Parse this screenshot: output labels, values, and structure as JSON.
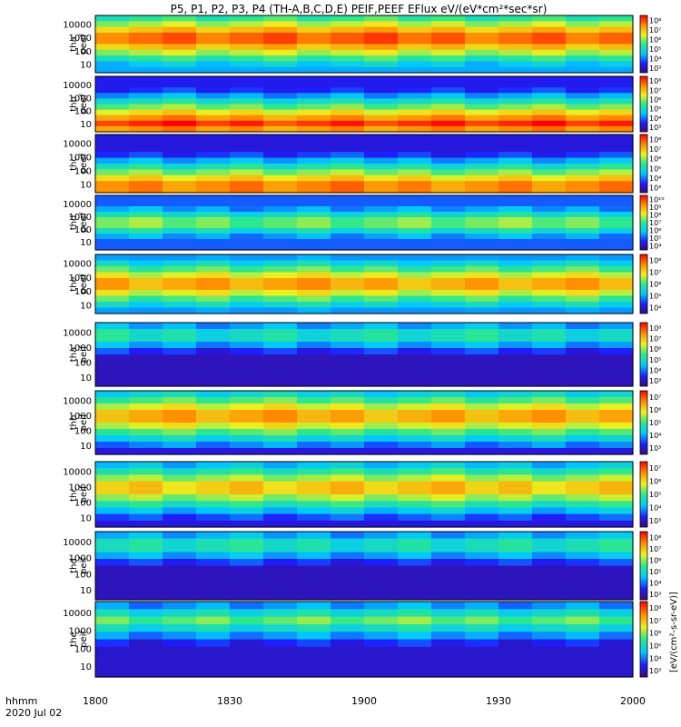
{
  "title": "P5, P1, P2, P3, P4 (TH-A,B,C,D,E) PEIF,PEEF EFlux eV/(eV*cm²*sec*sr)",
  "time_label": "hhmm",
  "date_label": "2020 Jul 02",
  "colorbar_unit": "[eV/(cm²-s-sr-eV)]",
  "chart_data": {
    "type": "heatmap",
    "x_range": [
      "1800",
      "2000"
    ],
    "x_ticks": [
      "1800",
      "1830",
      "1900",
      "1930",
      "2000"
    ],
    "y_scale": "log",
    "y_ticks": [
      "10",
      "100",
      "1000",
      "10000"
    ],
    "panels": [
      {
        "probe": "tha",
        "product": "peef",
        "cb_ticks": [
          "10³",
          "10⁴",
          "10⁵",
          "10⁶",
          "10⁷",
          "10⁸"
        ]
      },
      {
        "probe": "thb",
        "product": "peef",
        "cb_ticks": [
          "10³",
          "10⁴",
          "10⁵",
          "10⁶",
          "10⁷",
          "10⁸"
        ]
      },
      {
        "probe": "thc",
        "product": "peef",
        "cb_ticks": [
          "10³",
          "10⁴",
          "10⁵",
          "10⁶",
          "10⁷",
          "10⁸"
        ]
      },
      {
        "probe": "thd",
        "product": "peef",
        "cb_ticks": [
          "10⁴",
          "10⁵",
          "10⁶",
          "10⁷",
          "10⁸",
          "10⁹",
          "10¹⁰"
        ]
      },
      {
        "probe": "the",
        "product": "peef",
        "cb_ticks": [
          "10⁴",
          "10⁵",
          "10⁶",
          "10⁷",
          "10⁸"
        ]
      },
      {
        "probe": "tha",
        "product": "peif",
        "cb_ticks": [
          "10³",
          "10⁴",
          "10⁵",
          "10⁶",
          "10⁷",
          "10⁸"
        ]
      },
      {
        "probe": "thb",
        "product": "peif",
        "cb_ticks": [
          "10³",
          "10⁴",
          "10⁵",
          "10⁶",
          "10⁷"
        ]
      },
      {
        "probe": "thc",
        "product": "peif",
        "cb_ticks": [
          "10³",
          "10⁴",
          "10⁵",
          "10⁶",
          "10⁷"
        ]
      },
      {
        "probe": "thd",
        "product": "peif",
        "cb_ticks": [
          "10³",
          "10⁴",
          "10⁵",
          "10⁶",
          "10⁷",
          "10⁸"
        ]
      },
      {
        "probe": "the",
        "product": "peif",
        "cb_ticks": [
          "10³",
          "10⁴",
          "10⁵",
          "10⁶",
          "10⁷",
          "10⁸"
        ]
      }
    ]
  }
}
